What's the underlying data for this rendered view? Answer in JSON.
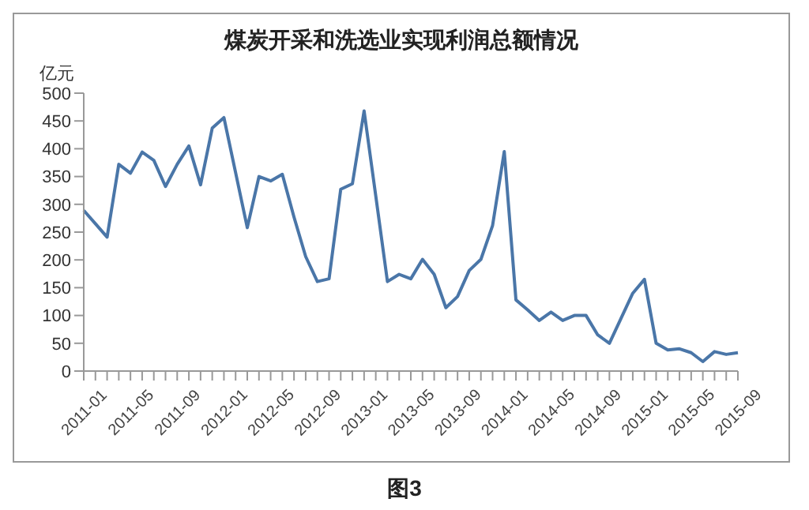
{
  "chart_data": {
    "type": "line",
    "title": "煤炭开采和洗选业实现利润总额情况",
    "ylabel": "亿元",
    "annotations": [
      "图3"
    ],
    "categories": [
      "2011-01",
      null,
      null,
      null,
      "2011-05",
      null,
      null,
      null,
      "2011-09",
      null,
      null,
      null,
      "2012-01",
      null,
      null,
      null,
      "2012-05",
      null,
      null,
      null,
      "2012-09",
      null,
      null,
      null,
      "2013-01",
      null,
      null,
      null,
      "2013-05",
      null,
      null,
      null,
      "2013-09",
      null,
      null,
      null,
      "2014-01",
      null,
      null,
      null,
      "2014-05",
      null,
      null,
      null,
      "2014-09",
      null,
      null,
      null,
      "2015-01",
      null,
      null,
      null,
      "2015-05",
      null,
      null,
      null,
      "2015-09"
    ],
    "series": [
      {
        "color": "#4a76a8",
        "values": [
          289,
          265,
          241,
          372,
          356,
          394,
          379,
          332,
          372,
          405,
          335,
          437,
          456,
          357,
          258,
          350,
          342,
          354,
          277,
          206,
          161,
          166,
          327,
          337,
          468,
          315,
          161,
          174,
          166,
          201,
          174,
          114,
          134,
          181,
          201,
          262,
          395,
          128,
          110,
          91,
          106,
          91,
          100,
          100,
          65,
          50,
          95,
          140,
          165,
          50,
          38,
          40,
          33,
          17,
          35,
          30,
          33
        ]
      }
    ],
    "ylim": [
      0,
      500
    ],
    "yticks": [
      0,
      50,
      100,
      150,
      200,
      250,
      300,
      350,
      400,
      450,
      500
    ],
    "grid": false,
    "legend": false,
    "marker": "none",
    "line_style": "solid"
  }
}
